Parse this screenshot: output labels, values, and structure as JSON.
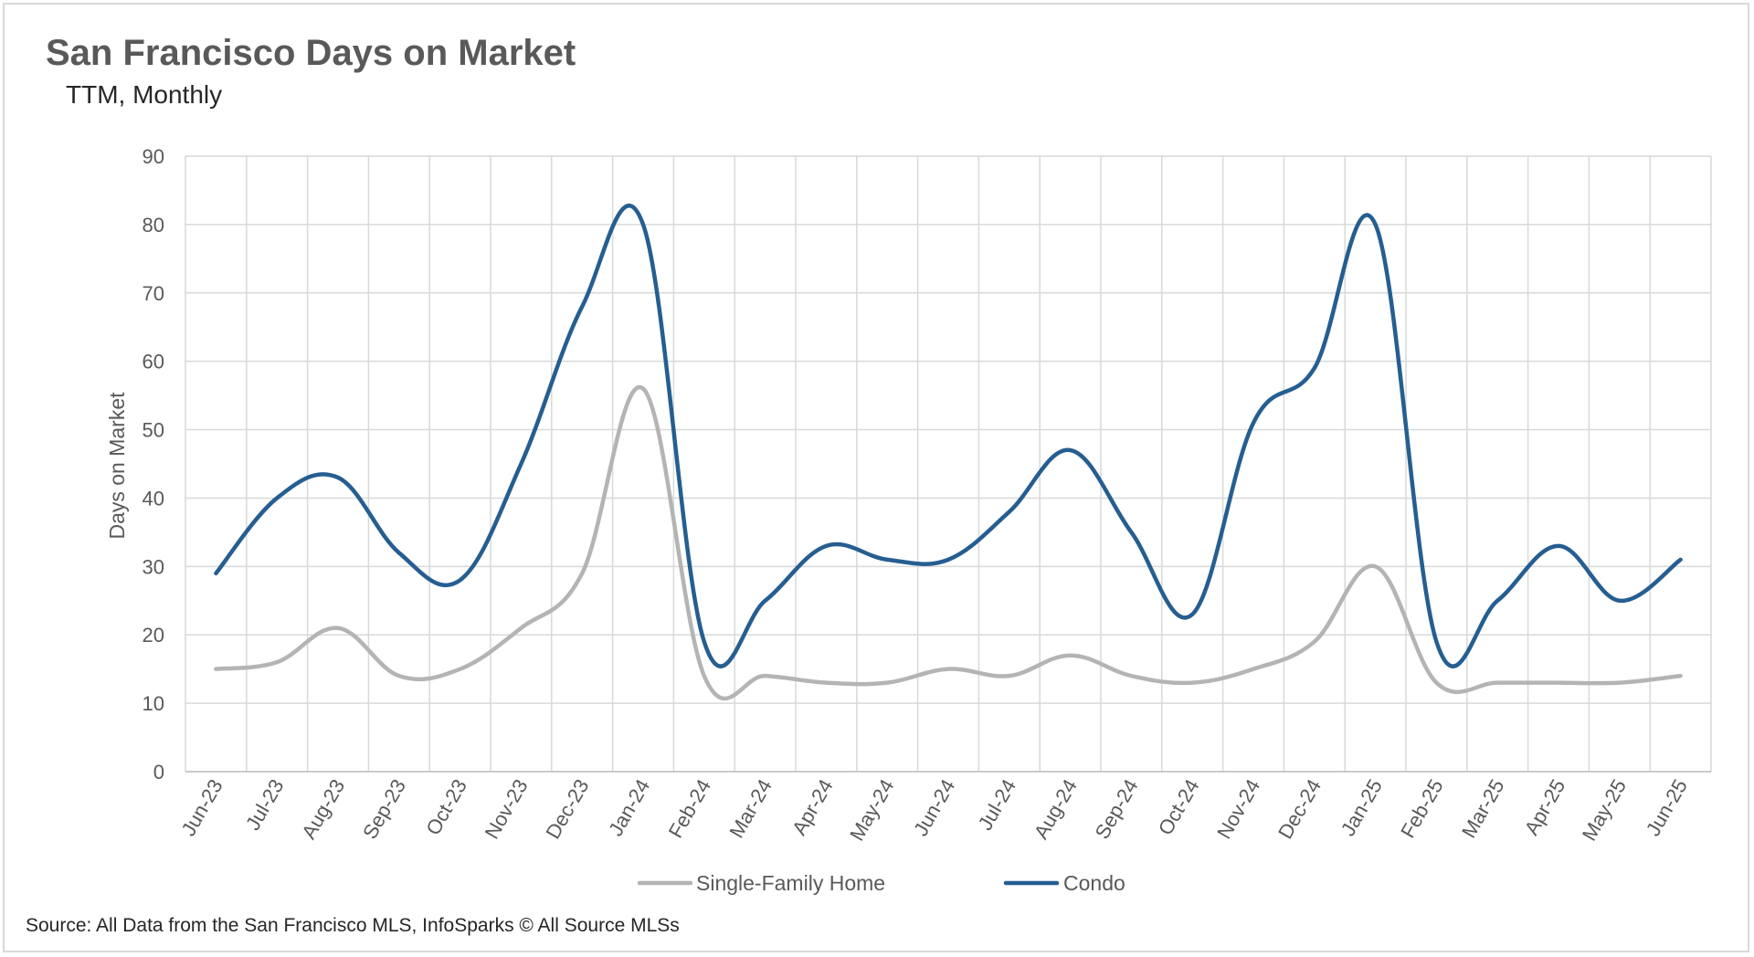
{
  "title": "San Francisco Days on Market",
  "subtitle": "TTM, Monthly",
  "source": "Source: All Data from the San Francisco MLS, InfoSparks © All Source MLSs",
  "chart_data": {
    "type": "line",
    "title": "San Francisco Days on Market",
    "subtitle": "TTM, Monthly",
    "xlabel": "",
    "ylabel": "Days on Market",
    "ylim": [
      0,
      90
    ],
    "yticks": [
      0,
      10,
      20,
      30,
      40,
      50,
      60,
      70,
      80,
      90
    ],
    "grid": true,
    "legend": "bottom",
    "categories": [
      "Jun-23",
      "Jul-23",
      "Aug-23",
      "Sep-23",
      "Oct-23",
      "Nov-23",
      "Dec-23",
      "Jan-24",
      "Feb-24",
      "Mar-24",
      "Apr-24",
      "May-24",
      "Jun-24",
      "Jul-24",
      "Aug-24",
      "Sep-24",
      "Oct-24",
      "Nov-24",
      "Dec-24",
      "Jan-25",
      "Feb-25",
      "Mar-25",
      "Apr-25",
      "May-25",
      "Jun-25"
    ],
    "series": [
      {
        "name": "Single-Family Home",
        "color": "#b4b4b4",
        "values": [
          15,
          16,
          21,
          14,
          15,
          21,
          29,
          56,
          14,
          14,
          13,
          13,
          15,
          14,
          17,
          14,
          13,
          15,
          19,
          30,
          13,
          13,
          13,
          13,
          14
        ]
      },
      {
        "name": "Condo",
        "color": "#255e91",
        "values": [
          29,
          40,
          43,
          32,
          28,
          45,
          68,
          80,
          19,
          25,
          33,
          31,
          31,
          38,
          47,
          35,
          23,
          51,
          59,
          80,
          19,
          25,
          33,
          25,
          31
        ]
      }
    ]
  }
}
